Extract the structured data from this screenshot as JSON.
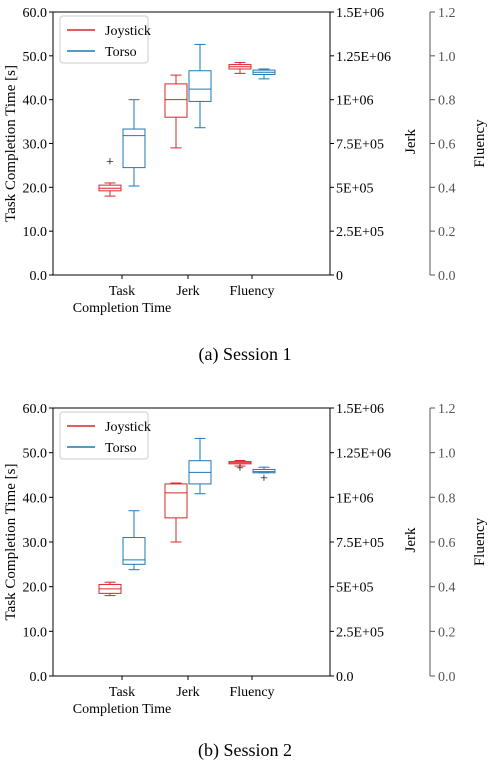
{
  "colors": {
    "joystick": "#d62728",
    "torso": "#1f77b4",
    "axis": "#000000",
    "axis_right2": "#555555"
  },
  "chart_data": [
    {
      "type": "box",
      "caption": "(a)  Session 1",
      "categories": [
        "Task\nCompletion Time",
        "Jerk",
        "Fluency"
      ],
      "legend": {
        "location": "top-left",
        "entries": [
          "Joystick",
          "Torso"
        ]
      },
      "y_left": {
        "label": "Task Completion Time [s]",
        "ylim": [
          0,
          60
        ],
        "ticks": [
          "0.0",
          "10.0",
          "20.0",
          "30.0",
          "40.0",
          "50.0",
          "60.0"
        ]
      },
      "y_right": {
        "label": "Jerk",
        "ylim": [
          0,
          1500000
        ],
        "ticks": [
          "0",
          "2.5E+05",
          "5E+05",
          "7.5E+05",
          "1E+06",
          "1.25E+06",
          "1.5E+06"
        ]
      },
      "y_right2": {
        "label": "Fluency",
        "ylim": [
          0,
          1.2
        ],
        "ticks": [
          "0.0",
          "0.2",
          "0.4",
          "0.6",
          "0.8",
          "1.0",
          "1.2"
        ]
      },
      "series": [
        {
          "name": "Joystick",
          "boxes": [
            {
              "category": 0,
              "axis": "left",
              "min": 18,
              "q1": 19.2,
              "median": 19.8,
              "q3": 20.5,
              "max": 21,
              "outliers": [
                25.8
              ]
            },
            {
              "category": 1,
              "axis": "right",
              "min": 725000,
              "q1": 900000,
              "median": 1000000,
              "q3": 1090000,
              "max": 1140000,
              "outliers": []
            },
            {
              "category": 2,
              "axis": "right2",
              "min": 0.92,
              "q1": 0.94,
              "median": 0.95,
              "q3": 0.96,
              "max": 0.97,
              "outliers": []
            }
          ]
        },
        {
          "name": "Torso",
          "boxes": [
            {
              "category": 0,
              "axis": "left",
              "min": 20.3,
              "q1": 24.5,
              "median": 31.8,
              "q3": 33.3,
              "max": 40,
              "outliers": []
            },
            {
              "category": 1,
              "axis": "right",
              "min": 840000,
              "q1": 990000,
              "median": 1060000,
              "q3": 1165000,
              "max": 1315000,
              "outliers": []
            },
            {
              "category": 2,
              "axis": "right2",
              "min": 0.895,
              "q1": 0.915,
              "median": 0.925,
              "q3": 0.935,
              "max": 0.94,
              "outliers": []
            }
          ]
        }
      ]
    },
    {
      "type": "box",
      "caption": "(b)  Session 2",
      "categories": [
        "Task\nCompletion Time",
        "Jerk",
        "Fluency"
      ],
      "legend": {
        "location": "top-left",
        "entries": [
          "Joystick",
          "Torso"
        ]
      },
      "y_left": {
        "label": "Task Completion Time [s]",
        "ylim": [
          0,
          60
        ],
        "ticks": [
          "0.0",
          "10.0",
          "20.0",
          "30.0",
          "40.0",
          "50.0",
          "60.0"
        ]
      },
      "y_right": {
        "label": "Jerk",
        "ylim": [
          0,
          1500000
        ],
        "ticks": [
          "0.0",
          "2.5E+05",
          "5E+05",
          "7.5E+05",
          "1E+06",
          "1.25E+06",
          "1.5E+06"
        ]
      },
      "y_right2": {
        "label": "Fluency",
        "ylim": [
          0,
          1.2
        ],
        "ticks": [
          "0.0",
          "0.2",
          "0.4",
          "0.6",
          "0.8",
          "1.0",
          "1.2"
        ]
      },
      "series": [
        {
          "name": "Joystick",
          "boxes": [
            {
              "category": 0,
              "axis": "left",
              "min": 18,
              "q1": 18.5,
              "median": 19.5,
              "q3": 20.5,
              "max": 21,
              "outliers": []
            },
            {
              "category": 1,
              "axis": "right",
              "min": 750000,
              "q1": 885000,
              "median": 1025000,
              "q3": 1075000,
              "max": 1080000,
              "outliers": []
            },
            {
              "category": 2,
              "axis": "right2",
              "min": 0.94,
              "q1": 0.95,
              "median": 0.955,
              "q3": 0.96,
              "max": 0.965,
              "outliers": [
                0.93
              ]
            }
          ]
        },
        {
          "name": "Torso",
          "boxes": [
            {
              "category": 0,
              "axis": "left",
              "min": 23.8,
              "q1": 25,
              "median": 26,
              "q3": 31,
              "max": 37,
              "outliers": []
            },
            {
              "category": 1,
              "axis": "right",
              "min": 1020000,
              "q1": 1075000,
              "median": 1140000,
              "q3": 1205000,
              "max": 1330000,
              "outliers": []
            },
            {
              "category": 2,
              "axis": "right2",
              "min": 0.91,
              "q1": 0.91,
              "median": 0.915,
              "q3": 0.925,
              "max": 0.935,
              "outliers": [
                0.885
              ]
            }
          ]
        }
      ]
    }
  ]
}
